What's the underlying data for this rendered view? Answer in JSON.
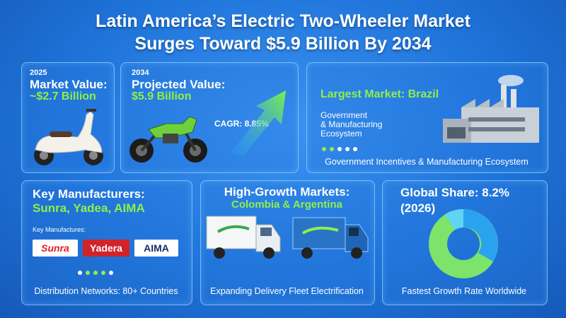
{
  "header": {
    "title_lines": [
      "Latin America’s Electric Two-Wheeler Market",
      "Surges Toward $5.9 Billion By 2034"
    ]
  },
  "cards": {
    "market_value": {
      "year": "2025",
      "label": "Market Value:",
      "value": "~$2.7 Billion"
    },
    "projected_value": {
      "year": "2034",
      "label": "Projected Value:",
      "value": "$5.9 Billion",
      "cagr": "CAGR: 8.85%"
    },
    "largest_market": {
      "heading": "Largest Market: Brazil",
      "text_lines": [
        "Government",
        "& Manufacturing",
        "Ecosystem"
      ],
      "footer": "Government Incentives & Manufacturing Ecosystem"
    },
    "manufacturers": {
      "heading": "Key Manufacturers:",
      "names": "Sunra, Yadea, AIMA",
      "subheading": "Key Manufactures:",
      "logos": [
        "Sunra",
        "Yadera",
        "AIMA"
      ],
      "footer": "Distribution Networks: 80+ Countries"
    },
    "growth_markets": {
      "heading": "High-Growth Markets:",
      "markets": "Colombia & Argentina",
      "footer": "Expanding Delivery Fleet Electrification"
    },
    "global_share": {
      "heading": "Global Share: 8.2%",
      "year": "(2026)",
      "footer": "Fastest Growth Rate Worldwide"
    }
  }
}
